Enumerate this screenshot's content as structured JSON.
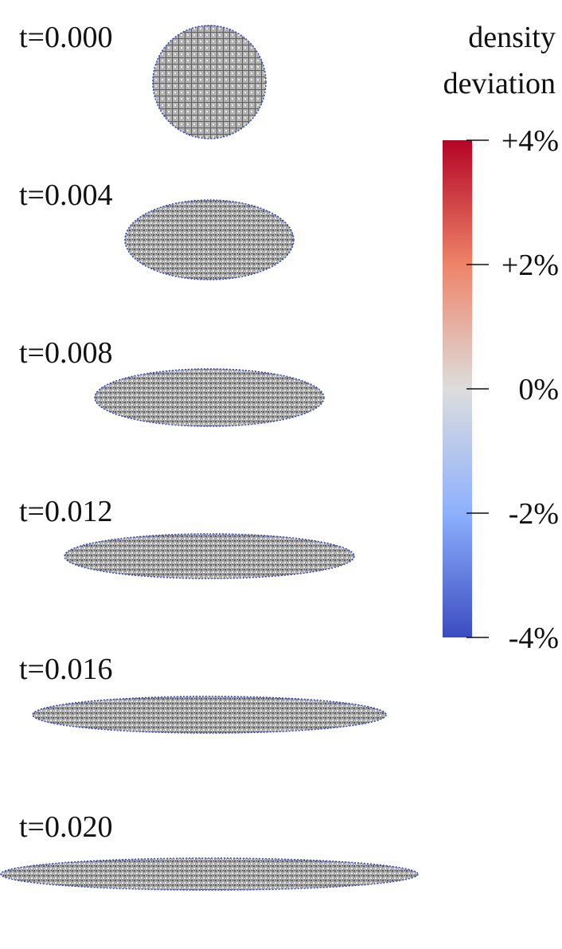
{
  "figure": {
    "snapshots": [
      {
        "time_label": "t=0.000"
      },
      {
        "time_label": "t=0.004"
      },
      {
        "time_label": "t=0.008"
      },
      {
        "time_label": "t=0.012"
      },
      {
        "time_label": "t=0.016"
      },
      {
        "time_label": "t=0.020"
      }
    ],
    "colorbar": {
      "title_line1": "density",
      "title_line2": "deviation",
      "ticks": [
        {
          "label": "+4%",
          "value": 4
        },
        {
          "label": "+2%",
          "value": 2
        },
        {
          "label": "0%",
          "value": 0
        },
        {
          "label": "-2%",
          "value": -2
        },
        {
          "label": "-4%",
          "value": -4
        }
      ],
      "range": [
        -4,
        4
      ],
      "colormap": "coolwarm",
      "colors": {
        "high": "#b40426",
        "mid": "#dddddd",
        "low": "#3b4cc0"
      }
    },
    "particle_colors": {
      "fill": "#9a9a9a",
      "dark": "#3a3a3a",
      "edge": "#3b4cc0"
    }
  }
}
